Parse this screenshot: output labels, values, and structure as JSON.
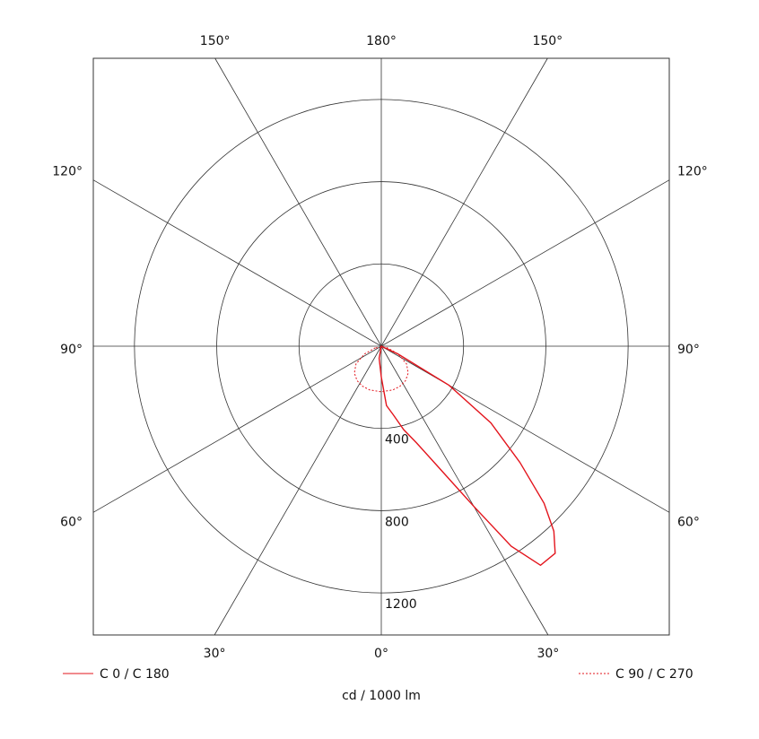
{
  "chart_data": {
    "type": "polar",
    "rlim": [
      0,
      1400
    ],
    "rticks": [
      400,
      800,
      1200
    ],
    "angle_ticks": [
      {
        "value": 0,
        "label": "0°"
      },
      {
        "value": 30,
        "label": "30°"
      },
      {
        "value": 60,
        "label": "60°"
      },
      {
        "value": 90,
        "label": "90°"
      },
      {
        "value": 120,
        "label": "120°"
      },
      {
        "value": 150,
        "label": "150°"
      },
      {
        "value": 180,
        "label": "180°"
      }
    ],
    "unit_label": "cd / 1000 lm",
    "series": [
      {
        "name": "C 0 / C 180",
        "color": "#e3141c",
        "dash": "solid",
        "x": [
          -10,
          0,
          5,
          10,
          15,
          20,
          25,
          30,
          33,
          36,
          40,
          43,
          46,
          50,
          55,
          60,
          65,
          70
        ],
        "values": [
          60,
          150,
          290,
          340,
          420,
          500,
          640,
          900,
          1160,
          1317,
          1315,
          1230,
          1100,
          880,
          650,
          380,
          90,
          0
        ]
      },
      {
        "name": "C 90 / C 270",
        "color": "#e3141c",
        "dash": "dotted",
        "x": [
          -75,
          -65,
          -55,
          -45,
          -35,
          -25,
          -15,
          0,
          15,
          25,
          35,
          45,
          55,
          65,
          75
        ],
        "values": [
          30,
          90,
          150,
          185,
          205,
          215,
          220,
          222,
          220,
          215,
          205,
          185,
          150,
          90,
          30
        ]
      }
    ]
  }
}
